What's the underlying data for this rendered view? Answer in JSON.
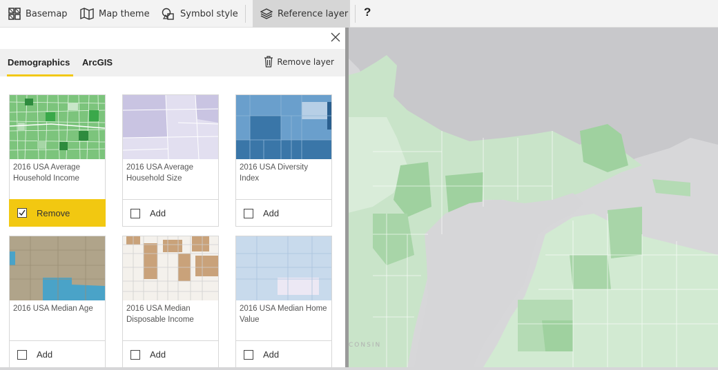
{
  "toolbar": {
    "basemap": "Basemap",
    "map_theme": "Map theme",
    "symbol_style": "Symbol style",
    "reference_layer": "Reference layer",
    "help": "?"
  },
  "panel": {
    "tabs": [
      {
        "label": "Demographics",
        "selected": true
      },
      {
        "label": "ArcGIS",
        "selected": false
      }
    ],
    "remove_layer": "Remove layer",
    "accent_color": "#f2c811",
    "cards": [
      {
        "title": "2016 USA Average Household Income",
        "action": "Remove",
        "checked": true
      },
      {
        "title": "2016 USA Average Household Size",
        "action": "Add",
        "checked": false
      },
      {
        "title": "2016 USA Diversity Index",
        "action": "Add",
        "checked": false
      },
      {
        "title": "2016 USA Median Age",
        "action": "Add",
        "checked": false
      },
      {
        "title": "2016 USA Median Disposable Income",
        "action": "Add",
        "checked": false
      },
      {
        "title": "2016 USA Median Home Value",
        "action": "Add",
        "checked": false
      }
    ]
  },
  "map": {
    "watermark": "CONSIN"
  }
}
